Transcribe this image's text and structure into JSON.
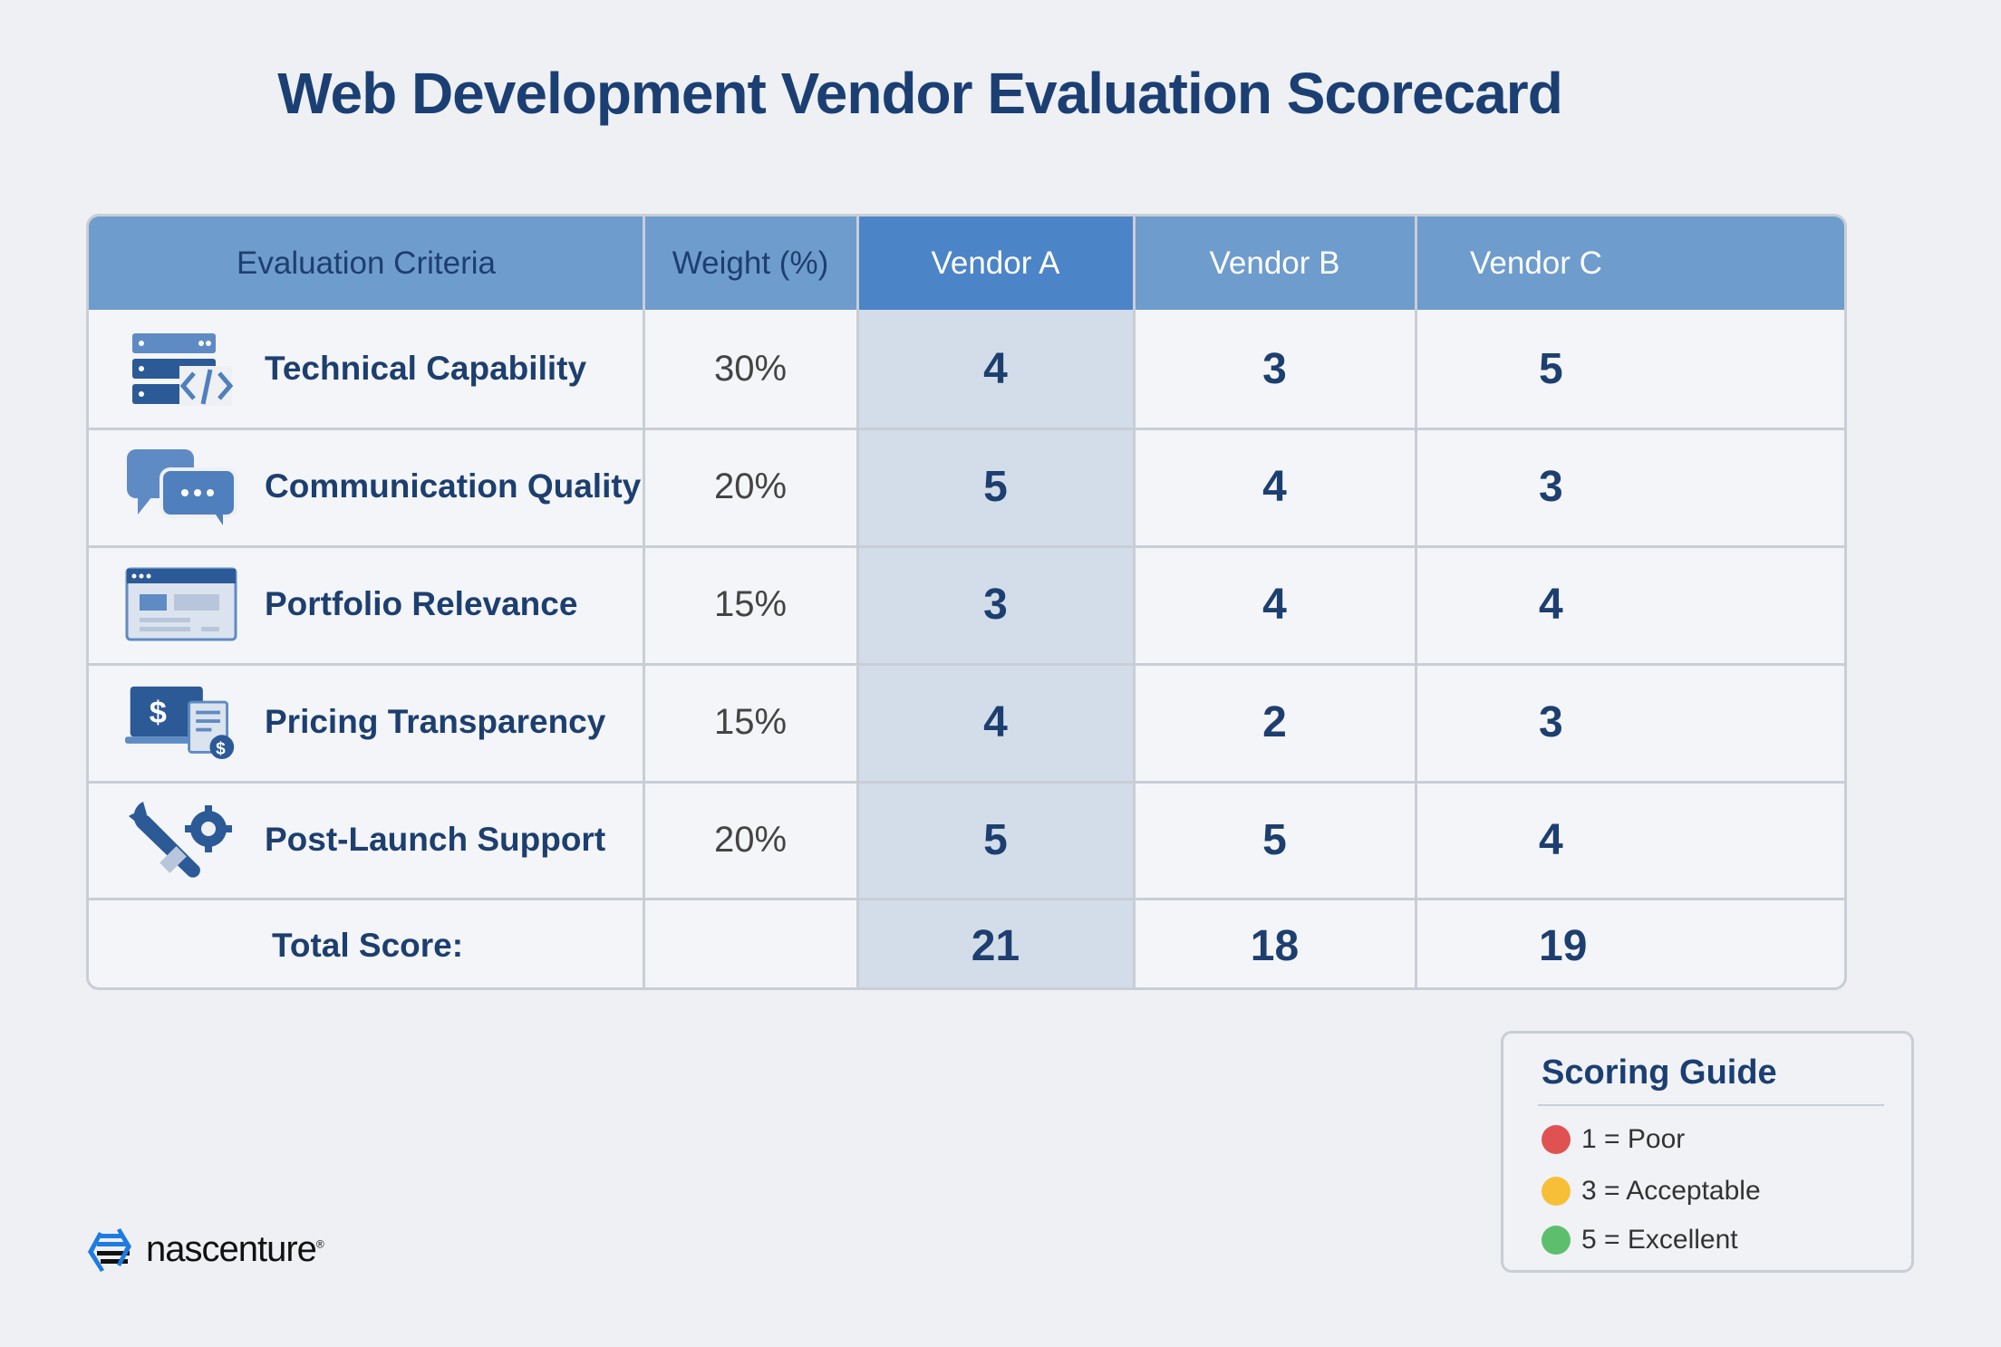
{
  "title": "Web Development Vendor Evaluation Scorecard",
  "table": {
    "headers": [
      "Evaluation Criteria",
      "Weight (%)",
      "Vendor A",
      "Vendor B",
      "Vendor C"
    ],
    "rows": [
      {
        "criteria": "Technical Capability",
        "icon": "server-code-icon",
        "weight": "30%",
        "a": "4",
        "b": "3",
        "c": "5"
      },
      {
        "criteria": "Communication Quality",
        "icon": "chat-bubbles-icon",
        "weight": "20%",
        "a": "5",
        "b": "4",
        "c": "3"
      },
      {
        "criteria": "Portfolio Relevance",
        "icon": "browser-window-icon",
        "weight": "15%",
        "a": "3",
        "b": "4",
        "c": "4"
      },
      {
        "criteria": "Pricing Transparency",
        "icon": "pricing-invoice-icon",
        "weight": "15%",
        "a": "4",
        "b": "2",
        "c": "3"
      },
      {
        "criteria": "Post-Launch Support",
        "icon": "wrench-gear-icon",
        "weight": "20%",
        "a": "5",
        "b": "5",
        "c": "4"
      }
    ],
    "total": {
      "label": "Total Score:",
      "a": "21",
      "b": "18",
      "c": "19"
    },
    "highlight_color": "#4c84c8"
  },
  "guide": {
    "title": "Scoring Guide",
    "items": [
      {
        "text": "1 = Poor",
        "color": "#e05252"
      },
      {
        "text": "3 = Acceptable",
        "color": "#f7bf38"
      },
      {
        "text": "5 = Excellent",
        "color": "#5cbf6e"
      }
    ]
  },
  "logo": {
    "name": "nascenture",
    "mark": "®"
  }
}
